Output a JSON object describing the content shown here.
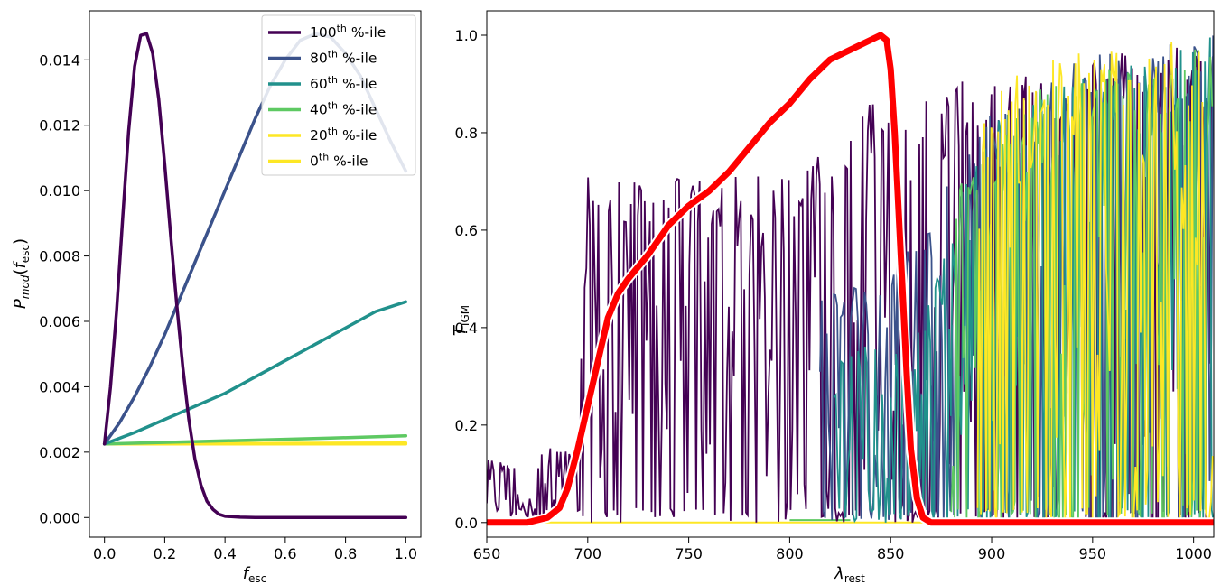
{
  "chart_data": [
    {
      "type": "line",
      "xlabel": "f_esc",
      "ylabel": "P_mod(f_esc)",
      "xlim": [
        -0.05,
        1.05
      ],
      "ylim": [
        -0.0006,
        0.0155
      ],
      "xticks": [
        "0.0",
        "0.2",
        "0.4",
        "0.6",
        "0.8",
        "1.0"
      ],
      "xtick_values": [
        0,
        0.2,
        0.4,
        0.6,
        0.8,
        1.0
      ],
      "yticks": [
        "0.000",
        "0.002",
        "0.004",
        "0.006",
        "0.008",
        "0.010",
        "0.012",
        "0.014"
      ],
      "ytick_values": [
        0,
        0.002,
        0.004,
        0.006,
        0.008,
        0.01,
        0.012,
        0.014
      ],
      "grid": false,
      "legend_position": "top-right",
      "series": [
        {
          "name": "100th %-ile",
          "base": "100",
          "sup": "th",
          "rest": " %-ile",
          "color": "#440154",
          "x": [
            0.0,
            0.02,
            0.04,
            0.06,
            0.08,
            0.1,
            0.12,
            0.14,
            0.16,
            0.18,
            0.2,
            0.22,
            0.24,
            0.26,
            0.28,
            0.3,
            0.32,
            0.34,
            0.36,
            0.38,
            0.4,
            0.45,
            0.5,
            0.6,
            0.8,
            1.0
          ],
          "y": [
            0.00225,
            0.004,
            0.0063,
            0.0091,
            0.0118,
            0.0138,
            0.01475,
            0.0148,
            0.0142,
            0.0128,
            0.0108,
            0.0086,
            0.0065,
            0.0046,
            0.003,
            0.0018,
            0.001,
            0.0005,
            0.00025,
            0.0001,
            4e-05,
            1e-05,
            0.0,
            0.0,
            0.0,
            0.0
          ]
        },
        {
          "name": "80th %-ile",
          "base": "80",
          "sup": "th",
          "rest": " %-ile",
          "color": "#3b528b",
          "x": [
            0.0,
            0.05,
            0.1,
            0.15,
            0.2,
            0.25,
            0.3,
            0.35,
            0.4,
            0.45,
            0.5,
            0.55,
            0.6,
            0.65,
            0.7,
            0.75,
            0.8,
            0.85,
            0.9,
            0.95,
            1.0
          ],
          "y": [
            0.00225,
            0.0029,
            0.0037,
            0.0046,
            0.0056,
            0.0067,
            0.0078,
            0.0089,
            0.01,
            0.0111,
            0.0122,
            0.0132,
            0.014,
            0.0146,
            0.0148,
            0.0147,
            0.0142,
            0.0135,
            0.0125,
            0.0115,
            0.0106
          ]
        },
        {
          "name": "60th %-ile",
          "base": "60",
          "sup": "th",
          "rest": " %-ile",
          "color": "#21918c",
          "x": [
            0.0,
            0.1,
            0.2,
            0.3,
            0.4,
            0.5,
            0.6,
            0.7,
            0.8,
            0.9,
            1.0
          ],
          "y": [
            0.00225,
            0.0026,
            0.003,
            0.0034,
            0.0038,
            0.0043,
            0.0048,
            0.0053,
            0.0058,
            0.0063,
            0.0066
          ]
        },
        {
          "name": "40th %-ile",
          "base": "40",
          "sup": "th",
          "rest": " %-ile",
          "color": "#5ec962",
          "x": [
            0.0,
            0.25,
            0.5,
            0.75,
            1.0
          ],
          "y": [
            0.00225,
            0.00231,
            0.00237,
            0.00243,
            0.0025
          ]
        },
        {
          "name": "20th %-ile",
          "base": "20",
          "sup": "th",
          "rest": " %-ile",
          "color": "#fde725",
          "x": [
            0.0,
            1.0
          ],
          "y": [
            0.00225,
            0.00228
          ]
        },
        {
          "name": "0th %-ile",
          "base": "0",
          "sup": "th",
          "rest": " %-ile",
          "color": "#fde725",
          "x": [
            0.0,
            1.0
          ],
          "y": [
            0.00225,
            0.00225
          ]
        }
      ]
    },
    {
      "type": "line",
      "xlabel": "λ_rest",
      "ylabel": "T_IGM",
      "xlim": [
        650,
        1010
      ],
      "ylim": [
        -0.03,
        1.05
      ],
      "xticks": [
        "650",
        "700",
        "750",
        "800",
        "850",
        "900",
        "950",
        "1000"
      ],
      "xtick_values": [
        650,
        700,
        750,
        800,
        850,
        900,
        950,
        1000
      ],
      "yticks": [
        "0.0",
        "0.2",
        "0.4",
        "0.6",
        "0.8",
        "1.0"
      ],
      "ytick_values": [
        0,
        0.2,
        0.4,
        0.6,
        0.8,
        1.0
      ],
      "grid": false,
      "noise_series": [
        {
          "color": "#440154",
          "x_start": 650,
          "x_end": 1010,
          "envelope_x": [
            650,
            675,
            678,
            688,
            695,
            700,
            740,
            780,
            800,
            840,
            880,
            920,
            1010
          ],
          "envelope_y": [
            0.13,
            0.12,
            0.17,
            0.15,
            0.15,
            0.71,
            0.71,
            0.71,
            0.72,
            0.88,
            0.9,
            0.95,
            1.0
          ]
        },
        {
          "color": "#3b528b",
          "x_start": 815,
          "x_end": 1010,
          "envelope_x": [
            815,
            850,
            900,
            950,
            1010
          ],
          "envelope_y": [
            0.48,
            0.5,
            0.85,
            0.97,
            1.0
          ]
        },
        {
          "color": "#21918c",
          "x_start": 822,
          "x_end": 1010,
          "envelope_x": [
            822,
            860,
            900,
            1010
          ],
          "envelope_y": [
            0.35,
            0.4,
            0.85,
            1.0
          ]
        },
        {
          "color": "#5ec962",
          "x_start": 880,
          "x_end": 1010,
          "envelope_x": [
            880,
            920,
            1010
          ],
          "envelope_y": [
            0.7,
            0.9,
            1.0
          ]
        },
        {
          "color": "#fde725",
          "x_start": 893,
          "x_end": 1010,
          "envelope_x": [
            893,
            920,
            1010
          ],
          "envelope_y": [
            0.85,
            0.95,
            1.0
          ]
        }
      ],
      "flat_series": [
        {
          "color": "#fde725",
          "x": [
            675,
            1010
          ],
          "y": [
            0.0,
            0.0
          ]
        },
        {
          "color": "#5ec962",
          "x": [
            800,
            830
          ],
          "y": [
            0.005,
            0.005
          ]
        }
      ],
      "filter_curve": {
        "color": "#ff0000",
        "x": [
          650,
          670,
          680,
          686,
          690,
          695,
          700,
          705,
          710,
          715,
          720,
          730,
          740,
          750,
          760,
          770,
          780,
          790,
          800,
          810,
          820,
          830,
          840,
          845,
          848,
          850,
          852,
          855,
          858,
          860,
          863,
          866,
          870,
          880,
          900,
          1010
        ],
        "y": [
          0.0,
          0.0,
          0.01,
          0.03,
          0.07,
          0.15,
          0.24,
          0.33,
          0.42,
          0.47,
          0.5,
          0.55,
          0.61,
          0.65,
          0.68,
          0.72,
          0.77,
          0.82,
          0.86,
          0.91,
          0.95,
          0.97,
          0.99,
          1.0,
          0.99,
          0.93,
          0.8,
          0.55,
          0.3,
          0.15,
          0.05,
          0.01,
          0.0,
          0.0,
          0.0,
          0.0
        ]
      }
    }
  ]
}
